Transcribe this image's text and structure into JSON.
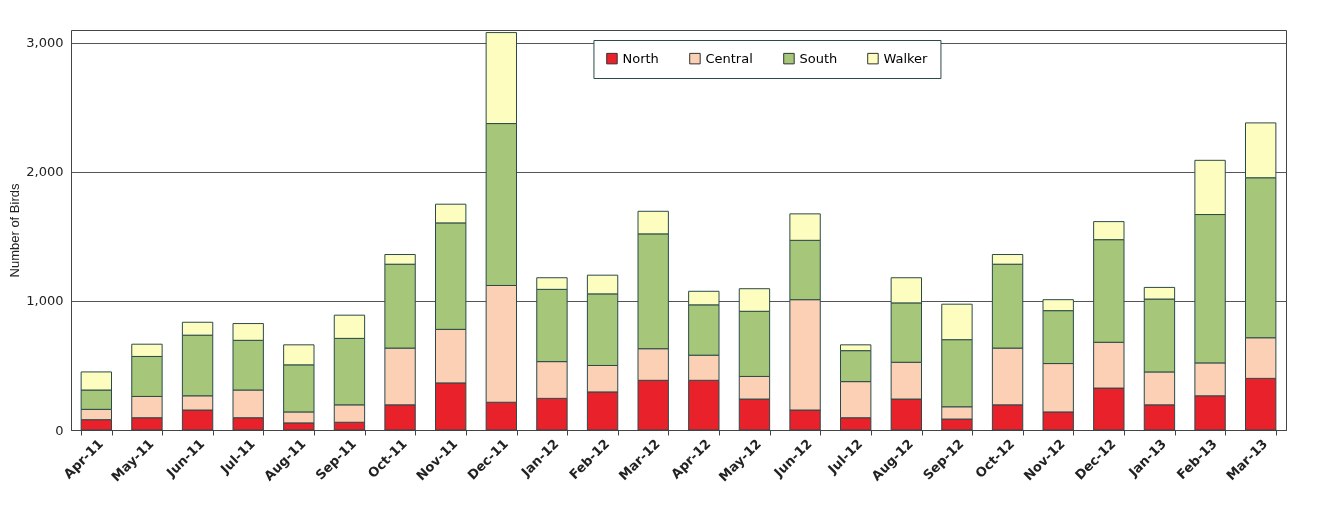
{
  "chart_data": {
    "type": "bar",
    "stacked": true,
    "ylabel": "Number of Birds",
    "categories": [
      "Apr-11",
      "May-11",
      "Jun-11",
      "Jul-11",
      "Aug-11",
      "Sep-11",
      "Oct-11",
      "Nov-11",
      "Dec-11",
      "Jan-12",
      "Feb-12",
      "Mar-12",
      "Apr-12",
      "May-12",
      "Jun-12",
      "Jul-12",
      "Aug-12",
      "Sep-12",
      "Oct-12",
      "Nov-12",
      "Dec-12",
      "Jan-13",
      "Feb-13",
      "Mar-13"
    ],
    "series": [
      {
        "name": "North",
        "color": "#e8212a",
        "values": [
          80,
          95,
          155,
          95,
          55,
          60,
          195,
          365,
          215,
          245,
          295,
          385,
          385,
          240,
          155,
          95,
          240,
          85,
          195,
          140,
          325,
          195,
          265,
          400
        ]
      },
      {
        "name": "Central",
        "color": "#fbd0b4",
        "values": [
          80,
          165,
          110,
          215,
          85,
          135,
          440,
          415,
          905,
          285,
          205,
          245,
          195,
          175,
          855,
          280,
          285,
          95,
          440,
          375,
          355,
          255,
          255,
          315
        ]
      },
      {
        "name": "South",
        "color": "#a6c679",
        "values": [
          150,
          310,
          470,
          385,
          365,
          515,
          650,
          825,
          1255,
          560,
          555,
          890,
          390,
          505,
          460,
          240,
          460,
          520,
          650,
          410,
          795,
          565,
          1150,
          1240
        ]
      },
      {
        "name": "Walker",
        "color": "#fdfdc0",
        "values": [
          140,
          95,
          100,
          130,
          155,
          180,
          75,
          145,
          705,
          90,
          145,
          175,
          105,
          175,
          205,
          45,
          195,
          275,
          75,
          85,
          140,
          90,
          420,
          425
        ]
      }
    ],
    "ylim": [
      0,
      3100
    ],
    "yticks": [
      0,
      {
        "value": 1000,
        "label": "1,000"
      },
      {
        "value": 2000,
        "label": "2,000"
      },
      {
        "value": 3000,
        "label": "3,000"
      }
    ],
    "grid": "y",
    "legend": "top"
  }
}
